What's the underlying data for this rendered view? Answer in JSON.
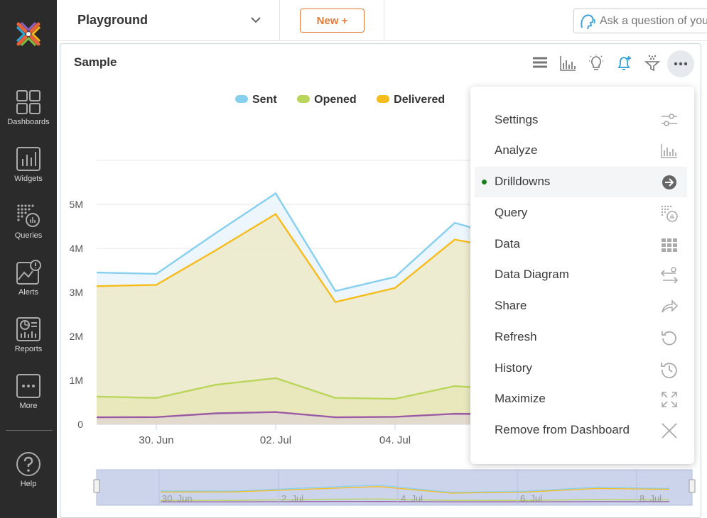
{
  "sidebar": {
    "items": [
      {
        "label": "Dashboards",
        "icon": "dashboards-icon"
      },
      {
        "label": "Widgets",
        "icon": "widgets-icon"
      },
      {
        "label": "Queries",
        "icon": "queries-icon"
      },
      {
        "label": "Alerts",
        "icon": "alerts-icon"
      },
      {
        "label": "Reports",
        "icon": "reports-icon"
      },
      {
        "label": "More",
        "icon": "more-icon"
      },
      {
        "label": "Help",
        "icon": "help-icon"
      }
    ]
  },
  "topbar": {
    "dashboard_title": "Playground",
    "new_button_label": "New +",
    "ask_placeholder": "Ask a question of your data"
  },
  "widget": {
    "title": "Sample",
    "toolbar_icons": [
      "list-icon",
      "bar-chart-icon",
      "lightbulb-icon",
      "bell-plus-icon",
      "funnel-icon",
      "more-icon"
    ]
  },
  "chart_data": {
    "type": "area",
    "title": "",
    "x": [
      "29 Jun",
      "30 Jun",
      "1 Jul",
      "2 Jul",
      "3 Jul",
      "4 Jul",
      "5 Jul",
      "6 Jul"
    ],
    "x_tick_labels": [
      "30. Jun",
      "02. Jul",
      "04. Jul"
    ],
    "y_tick_labels": [
      "0",
      "1M",
      "2M",
      "3M",
      "4M",
      "5M"
    ],
    "ylim": [
      0,
      6000000
    ],
    "series": [
      {
        "name": "Sent",
        "color": "#87cfee",
        "values": [
          3450000,
          3420000,
          4350000,
          5250000,
          3030000,
          3350000,
          4580000,
          4200000
        ]
      },
      {
        "name": "Opened",
        "color": "#b9d65a",
        "values": [
          630000,
          600000,
          900000,
          1050000,
          600000,
          580000,
          870000,
          780000
        ]
      },
      {
        "name": "Delivered",
        "color": "#f6bc1c",
        "values": [
          3140000,
          3170000,
          3960000,
          4780000,
          2780000,
          3100000,
          4200000,
          3950000
        ]
      },
      {
        "color": "#9a5ba4",
        "values": [
          160000,
          165000,
          250000,
          280000,
          160000,
          170000,
          240000,
          230000
        ]
      }
    ],
    "navigator_labels": [
      "30. Jun",
      "2. Jul",
      "4. Jul",
      "6. Jul",
      "8. Jul"
    ],
    "legend_position": "top-center"
  },
  "menu": {
    "items": [
      {
        "label": "Settings",
        "icon": "sliders-icon"
      },
      {
        "label": "Analyze",
        "icon": "bar-chart-icon"
      },
      {
        "label": "Drilldowns",
        "icon": "arrow-circle-right-icon",
        "active": true
      },
      {
        "label": "Query",
        "icon": "query-icon"
      },
      {
        "label": "Data",
        "icon": "grid-icon"
      },
      {
        "label": "Data Diagram",
        "icon": "diagram-arrows-icon"
      },
      {
        "label": "Share",
        "icon": "share-arrow-icon"
      },
      {
        "label": "Refresh",
        "icon": "refresh-icon"
      },
      {
        "label": "History",
        "icon": "history-icon"
      },
      {
        "label": "Maximize",
        "icon": "maximize-icon"
      },
      {
        "label": "Remove from Dashboard",
        "icon": "close-x-icon"
      }
    ]
  }
}
